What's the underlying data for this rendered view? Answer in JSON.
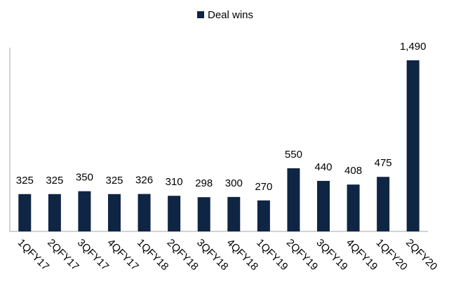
{
  "chart_data": {
    "type": "bar",
    "categories": [
      "1QFY17",
      "2QFY17",
      "3QFY17",
      "4QFY17",
      "1QFY18",
      "2QFY18",
      "3QFY18",
      "4QFY18",
      "1QFY19",
      "2QFY19",
      "3QFY19",
      "4QFY19",
      "1QFY20",
      "2QFY20"
    ],
    "series": [
      {
        "name": "Deal wins",
        "color": "#0f2544",
        "values": [
          325,
          325,
          350,
          325,
          326,
          310,
          298,
          300,
          270,
          550,
          440,
          408,
          475,
          1490
        ],
        "value_labels": [
          "325",
          "325",
          "350",
          "325",
          "326",
          "310",
          "298",
          "300",
          "270",
          "550",
          "440",
          "408",
          "475",
          "1,490"
        ]
      }
    ],
    "ylim": [
      0,
      1600
    ],
    "legend": "top"
  }
}
